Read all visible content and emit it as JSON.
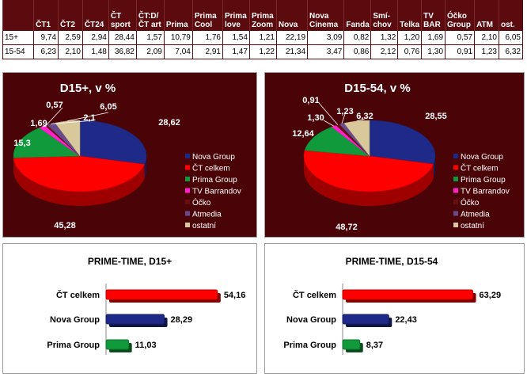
{
  "table": {
    "columns": [
      "",
      "ČT1",
      "ČT2",
      "ČT24",
      "ČT sport",
      "ČT:D/ ČT art",
      "Prima",
      "Prima Cool",
      "Prima love",
      "Prima Zoom",
      "Nova",
      "Nova Cinema",
      "Fanda",
      "Smí-chov",
      "Telka",
      "TV BAR",
      "Óčko Group",
      "ATM",
      "ost."
    ],
    "rows": [
      [
        "15+",
        "9,74",
        "2,59",
        "2,94",
        "28,44",
        "1,57",
        "10,79",
        "1,76",
        "1,54",
        "1,21",
        "22,19",
        "3,09",
        "0,82",
        "1,32",
        "1,20",
        "1,69",
        "0,57",
        "2,10",
        "6,05"
      ],
      [
        "15-54",
        "6,23",
        "2,10",
        "1,48",
        "36,82",
        "2,09",
        "7,04",
        "2,91",
        "1,47",
        "1,22",
        "21,34",
        "3,47",
        "0,86",
        "2,12",
        "0,76",
        "1,30",
        "0,91",
        "1,23",
        "6,32"
      ]
    ]
  },
  "chart_data": [
    {
      "type": "pie",
      "title": "D15+, v %",
      "categories": [
        "Nova Group",
        "ČT celkem",
        "Prima Group",
        "TV Barrandov",
        "Óčko",
        "Atmedia",
        "ostatní"
      ],
      "values": [
        28.62,
        45.28,
        15.3,
        1.69,
        0.57,
        2.1,
        6.05
      ],
      "labels": [
        "28,62",
        "45,28",
        "15,3",
        "1,69",
        "0,57",
        "2,1",
        "6,05"
      ],
      "colors": [
        "#1f2a88",
        "#ff0000",
        "#119a3c",
        "#ff22cc",
        "#6a0d10",
        "#6a4a8a",
        "#d8c89a"
      ],
      "legend": "right"
    },
    {
      "type": "pie",
      "title": "D15-54, v %",
      "categories": [
        "Nova Group",
        "ČT celkem",
        "Prima Group",
        "TV Barrandov",
        "Óčko",
        "Atmedia",
        "ostatní"
      ],
      "values": [
        28.55,
        48.72,
        12.64,
        1.3,
        0.91,
        1.23,
        6.32
      ],
      "labels": [
        "28,55",
        "48,72",
        "12,64",
        "1,30",
        "0,91",
        "1,23",
        "6,32"
      ],
      "colors": [
        "#1f2a88",
        "#ff0000",
        "#119a3c",
        "#ff22cc",
        "#6a0d10",
        "#6a4a8a",
        "#d8c89a"
      ],
      "legend": "right"
    },
    {
      "type": "bar",
      "title": "PRIME-TIME, D15+",
      "categories": [
        "ČT celkem",
        "Nova Group",
        "Prima Group"
      ],
      "values": [
        54.16,
        28.29,
        11.03
      ],
      "labels": [
        "54,16",
        "28,29",
        "11,03"
      ],
      "colors": [
        "#ff0000",
        "#1f2a88",
        "#119a3c"
      ],
      "orientation": "horizontal"
    },
    {
      "type": "bar",
      "title": "PRIME-TIME, D15-54",
      "categories": [
        "ČT celkem",
        "Nova Group",
        "Prima Group"
      ],
      "values": [
        63.29,
        22.43,
        8.37
      ],
      "labels": [
        "63,29",
        "22,43",
        "8,37"
      ],
      "colors": [
        "#ff0000",
        "#1f2a88",
        "#119a3c"
      ],
      "orientation": "horizontal"
    }
  ]
}
